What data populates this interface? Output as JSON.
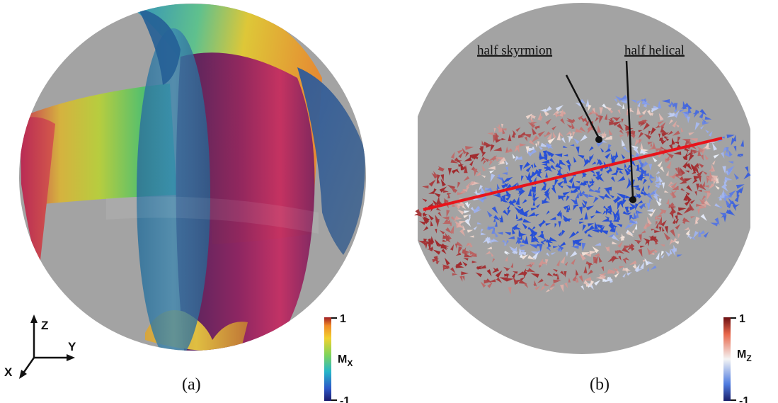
{
  "panel_a": {
    "caption": "(a)",
    "colorbar": {
      "max_label": "1",
      "min_label": "-1",
      "title": "M",
      "subscript": "X"
    },
    "axes": {
      "z": "Z",
      "y": "Y",
      "x": "X"
    }
  },
  "panel_b": {
    "caption": "(b)",
    "annotations": {
      "skyrmion": "half skyrmion",
      "helical": "half helical"
    },
    "colorbar": {
      "max_label": "1",
      "min_label": "-1",
      "title": "M",
      "subscript": "Z"
    }
  },
  "colors": {
    "sphere_background": "#a3a3a3",
    "cut_line": "#e8141b"
  }
}
